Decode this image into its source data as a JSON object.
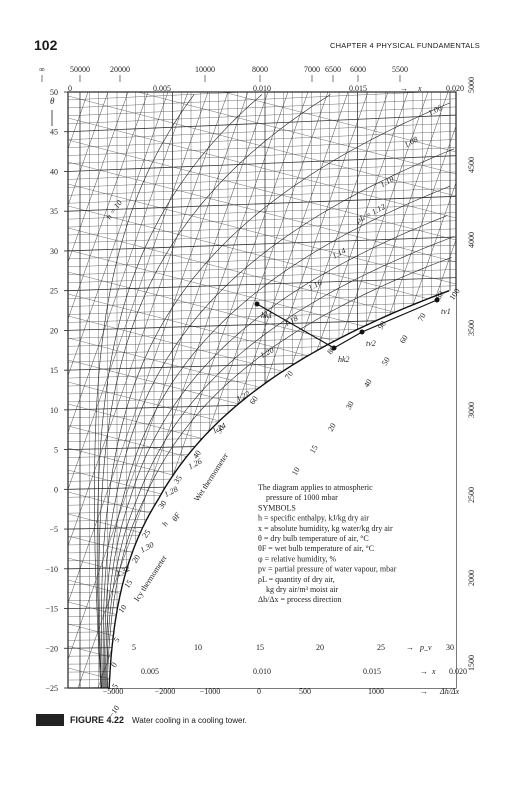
{
  "header": {
    "page_number": "102",
    "chapter": "CHAPTER 4 PHYSICAL FUNDAMENTALS"
  },
  "caption": {
    "figure": "FIGURE 4.22",
    "text": "Water cooling in a cooling tower."
  },
  "chart_data": {
    "type": "psychrometric (Mollier h-x) diagram",
    "y_axis": {
      "symbol": "θ",
      "range": [
        -25,
        50
      ],
      "ticks": [
        "50",
        "45",
        "40",
        "35",
        "30",
        "25",
        "20",
        "15",
        "10",
        "5",
        "0",
        "−5",
        "−10",
        "−15",
        "−20",
        "−25"
      ]
    },
    "x_axis_top": {
      "symbol": "x",
      "range": [
        0,
        0.02
      ],
      "ticks": [
        "0",
        "0.005",
        "0.010",
        "0.015",
        "0.020"
      ]
    },
    "x_axis_bottom": {
      "symbol": "x",
      "ticks": [
        "0.005",
        "0.010",
        "0.015",
        "0.020"
      ]
    },
    "pv_scale": {
      "symbol": "p_v",
      "ticks": [
        "5",
        "10",
        "15",
        "20",
        "25",
        "30"
      ]
    },
    "direction_scale_top": {
      "ticks": [
        "∞",
        "50000",
        "20000",
        "10000",
        "8000",
        "7000",
        "6500",
        "6000",
        "5500"
      ]
    },
    "direction_scale_bottom": {
      "symbol": "Δh/Δx",
      "ticks": [
        "−5000",
        "−2000",
        "−1000",
        "0",
        "500",
        "1000"
      ]
    },
    "direction_scale_right": {
      "ticks": [
        "5000",
        "4500",
        "4000",
        "3500",
        "3000",
        "2500",
        "2000",
        "1500"
      ]
    },
    "enthalpy_labels": [
      "−10",
      "−5",
      "0",
      "5",
      "10",
      "15",
      "20",
      "25",
      "30",
      "35",
      "40",
      "50",
      "60",
      "70",
      "80",
      "90",
      "100"
    ],
    "enthalpy_label_prefix": "h = 10",
    "rh_labels": [
      "80",
      "70",
      "60",
      "50",
      "40",
      "30",
      "20",
      "15",
      "10"
    ],
    "density_labels": [
      {
        "label": "1.06",
        "t": 47
      },
      {
        "label": "1.08",
        "t": 43
      },
      {
        "label": "1.10",
        "t": 38
      },
      {
        "label": "ρL = 1.12",
        "t": 33.5
      },
      {
        "label": "1.14",
        "t": 29
      },
      {
        "label": "1.16",
        "t": 25
      },
      {
        "label": "1.18",
        "t": 20.5
      },
      {
        "label": "1.20",
        "t": 16.5
      },
      {
        "label": "1.22",
        "t": 11
      },
      {
        "label": "1.24",
        "t": 7
      },
      {
        "label": "1.26",
        "t": 2.5
      },
      {
        "label": "1.28",
        "t": -1
      },
      {
        "label": "1.30",
        "t": -8
      },
      {
        "label": "1.32",
        "t": -11
      }
    ],
    "wet_thermometer_label": "Wet thermometer",
    "icy_thermometer_label": "Icy thermometer",
    "theta_f_label": "θF",
    "h_label": "h",
    "points": [
      {
        "name": "hk1",
        "x": 0.0082,
        "t": 25.3
      },
      {
        "name": "hk2",
        "x": 0.0112,
        "t": 18.5
      },
      {
        "name": "tv1",
        "x": 0.0186,
        "t": 26
      },
      {
        "name": "tv2",
        "x": 0.0144,
        "t": 21.3
      }
    ],
    "legend": {
      "lines": [
        "The diagram applies to atmospheric",
        "pressure of 1000 mbar",
        "SYMBOLS",
        "h = specific enthalpy, kJ/kg dry air",
        "x = absolute humidity, kg water/kg dry air",
        "θ = dry bulb temperature of air, °C",
        "θF = wet bulb temperature of air, °C",
        "φ = relative humidity, %",
        "pv = partial pressure of water vapour, mbar",
        "ρL = quantity of dry air,",
        "kg dry air/m³ moist air",
        "Δh/Δx = process direction"
      ]
    }
  }
}
